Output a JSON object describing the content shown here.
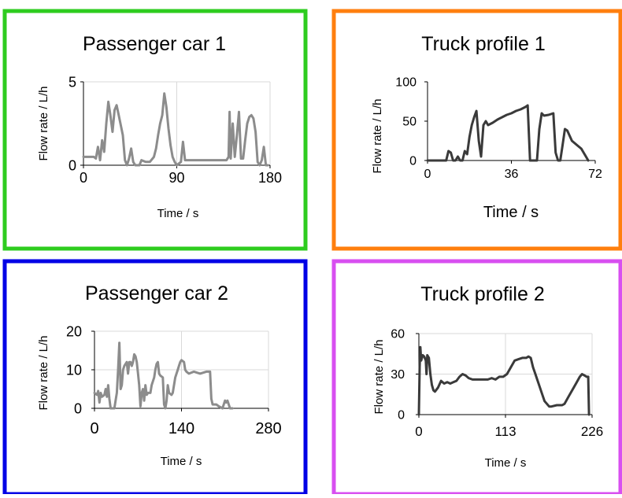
{
  "chart_data": [
    {
      "type": "line",
      "title": "Passenger car 1",
      "xlabel": "Time / s",
      "ylabel": "Flow rate / L/h",
      "xlim": [
        0,
        180
      ],
      "ylim": [
        0,
        5
      ],
      "xticks": [
        0,
        90,
        180
      ],
      "yticks": [
        0,
        5
      ],
      "grid": true,
      "frame_color": "#2ecc1f",
      "line_color": "#8c8c8c",
      "series": [
        {
          "points": [
            [
              0,
              0.5
            ],
            [
              10,
              0.5
            ],
            [
              12,
              0.4
            ],
            [
              14,
              1.1
            ],
            [
              16,
              0.3
            ],
            [
              18,
              1.5
            ],
            [
              20,
              0.8
            ],
            [
              22,
              2.5
            ],
            [
              24,
              3.8
            ],
            [
              26,
              3.0
            ],
            [
              28,
              2.0
            ],
            [
              30,
              3.3
            ],
            [
              32,
              3.6
            ],
            [
              34,
              3.0
            ],
            [
              36,
              2.4
            ],
            [
              38,
              1.8
            ],
            [
              40,
              0.3
            ],
            [
              42,
              0.0
            ],
            [
              44,
              0.4
            ],
            [
              46,
              1.0
            ],
            [
              48,
              0.2
            ],
            [
              50,
              0.0
            ],
            [
              54,
              0.0
            ],
            [
              56,
              0.3
            ],
            [
              60,
              0.2
            ],
            [
              64,
              0.2
            ],
            [
              68,
              0.5
            ],
            [
              70,
              1.0
            ],
            [
              72,
              1.8
            ],
            [
              74,
              2.5
            ],
            [
              76,
              3.0
            ],
            [
              78,
              4.3
            ],
            [
              80,
              3.5
            ],
            [
              82,
              2.2
            ],
            [
              84,
              1.2
            ],
            [
              86,
              0.5
            ],
            [
              88,
              0.2
            ],
            [
              90,
              0.0
            ],
            [
              92,
              0.1
            ],
            [
              94,
              0.2
            ],
            [
              96,
              1.4
            ],
            [
              98,
              0.3
            ],
            [
              102,
              0.3
            ],
            [
              120,
              0.3
            ],
            [
              138,
              0.3
            ],
            [
              140,
              0.5
            ],
            [
              141,
              3.2
            ],
            [
              142,
              0.4
            ],
            [
              144,
              2.5
            ],
            [
              146,
              0.5
            ],
            [
              148,
              1.8
            ],
            [
              150,
              3.2
            ],
            [
              152,
              0.4
            ],
            [
              154,
              0.4
            ],
            [
              156,
              1.5
            ],
            [
              158,
              2.5
            ],
            [
              160,
              2.9
            ],
            [
              162,
              3.0
            ],
            [
              164,
              2.8
            ],
            [
              166,
              2.0
            ],
            [
              168,
              0.2
            ],
            [
              170,
              0.0
            ],
            [
              172,
              0.3
            ],
            [
              174,
              1.1
            ],
            [
              176,
              0.0
            ],
            [
              178,
              0.0
            ]
          ]
        }
      ]
    },
    {
      "type": "line",
      "title": "Truck profile 1",
      "xlabel": "Time / s",
      "ylabel": "Flow rate / L/h",
      "xlim": [
        0,
        72
      ],
      "ylim": [
        0,
        100
      ],
      "xticks": [
        0,
        36,
        72
      ],
      "yticks": [
        0,
        50,
        100
      ],
      "grid": false,
      "frame_color": "#ff7f0e",
      "line_color": "#3a3a3a",
      "series": [
        {
          "points": [
            [
              0,
              0
            ],
            [
              8,
              0
            ],
            [
              9,
              12
            ],
            [
              10,
              10
            ],
            [
              11,
              0
            ],
            [
              12,
              0
            ],
            [
              13,
              5
            ],
            [
              14,
              0
            ],
            [
              15,
              0
            ],
            [
              16,
              12
            ],
            [
              17,
              8
            ],
            [
              18,
              30
            ],
            [
              19,
              45
            ],
            [
              20,
              55
            ],
            [
              21,
              63
            ],
            [
              22,
              25
            ],
            [
              23,
              5
            ],
            [
              24,
              45
            ],
            [
              25,
              50
            ],
            [
              26,
              45
            ],
            [
              28,
              48
            ],
            [
              30,
              52
            ],
            [
              32,
              55
            ],
            [
              34,
              58
            ],
            [
              36,
              60
            ],
            [
              38,
              63
            ],
            [
              40,
              65
            ],
            [
              42,
              68
            ],
            [
              43,
              70
            ],
            [
              44,
              0
            ],
            [
              46,
              0
            ],
            [
              47,
              0
            ],
            [
              48,
              40
            ],
            [
              49,
              60
            ],
            [
              50,
              57
            ],
            [
              52,
              58
            ],
            [
              54,
              60
            ],
            [
              55,
              10
            ],
            [
              56,
              0
            ],
            [
              57,
              0
            ],
            [
              58,
              20
            ],
            [
              59,
              40
            ],
            [
              60,
              38
            ],
            [
              62,
              25
            ],
            [
              64,
              20
            ],
            [
              66,
              15
            ],
            [
              68,
              5
            ],
            [
              69,
              0
            ]
          ]
        }
      ]
    },
    {
      "type": "line",
      "title": "Passenger car 2",
      "xlabel": "Time / s",
      "ylabel": "Flow rate / L/h",
      "xlim": [
        0,
        280
      ],
      "ylim": [
        0,
        20
      ],
      "xticks": [
        0,
        140,
        280
      ],
      "yticks": [
        0,
        10,
        20
      ],
      "grid": true,
      "frame_color": "#0000e6",
      "line_color": "#8c8c8c",
      "series": [
        {
          "points": [
            [
              0,
              4
            ],
            [
              4,
              3.5
            ],
            [
              6,
              4.5
            ],
            [
              8,
              1.5
            ],
            [
              10,
              4
            ],
            [
              12,
              3
            ],
            [
              16,
              3.5
            ],
            [
              18,
              5
            ],
            [
              20,
              3
            ],
            [
              22,
              6
            ],
            [
              24,
              2.5
            ],
            [
              26,
              0
            ],
            [
              28,
              0
            ],
            [
              32,
              0
            ],
            [
              34,
              2
            ],
            [
              36,
              4
            ],
            [
              38,
              10
            ],
            [
              40,
              17
            ],
            [
              42,
              5
            ],
            [
              44,
              6
            ],
            [
              46,
              10
            ],
            [
              48,
              11
            ],
            [
              50,
              11.5
            ],
            [
              52,
              12
            ],
            [
              54,
              9
            ],
            [
              56,
              12
            ],
            [
              58,
              12
            ],
            [
              60,
              11
            ],
            [
              62,
              12
            ],
            [
              64,
              14
            ],
            [
              66,
              13.5
            ],
            [
              68,
              12
            ],
            [
              70,
              9
            ],
            [
              72,
              6
            ],
            [
              74,
              0.5
            ],
            [
              76,
              4
            ],
            [
              78,
              5
            ],
            [
              80,
              2
            ],
            [
              82,
              6
            ],
            [
              84,
              3.5
            ],
            [
              86,
              4
            ],
            [
              90,
              4
            ],
            [
              92,
              6
            ],
            [
              94,
              7
            ],
            [
              96,
              8
            ],
            [
              98,
              10
            ],
            [
              100,
              11.5
            ],
            [
              102,
              12
            ],
            [
              104,
              9
            ],
            [
              106,
              8.5
            ],
            [
              110,
              8
            ],
            [
              112,
              1
            ],
            [
              114,
              0
            ],
            [
              116,
              2
            ],
            [
              118,
              6
            ],
            [
              120,
              4
            ],
            [
              124,
              3.5
            ],
            [
              126,
              4
            ],
            [
              128,
              6
            ],
            [
              130,
              8
            ],
            [
              132,
              9
            ],
            [
              134,
              10
            ],
            [
              136,
              11
            ],
            [
              138,
              12
            ],
            [
              140,
              12.5
            ],
            [
              144,
              12
            ],
            [
              146,
              10
            ],
            [
              148,
              9.5
            ],
            [
              152,
              9
            ],
            [
              160,
              9.5
            ],
            [
              170,
              9
            ],
            [
              180,
              9.5
            ],
            [
              186,
              9.5
            ],
            [
              188,
              2.5
            ],
            [
              190,
              1
            ],
            [
              196,
              1
            ],
            [
              200,
              0.5
            ],
            [
              206,
              0
            ],
            [
              210,
              2
            ],
            [
              212,
              1.5
            ],
            [
              214,
              2
            ],
            [
              216,
              1
            ],
            [
              218,
              0
            ],
            [
              222,
              0
            ]
          ]
        }
      ]
    },
    {
      "type": "line",
      "title": "Truck profile 2",
      "xlabel": "Time / s",
      "ylabel": "Flow rate / L/h",
      "xlim": [
        0,
        226
      ],
      "ylim": [
        0,
        60
      ],
      "xticks": [
        0,
        113,
        226
      ],
      "yticks": [
        0,
        30,
        60
      ],
      "grid": true,
      "frame_color": "#d84ff0",
      "line_color": "#3a3a3a",
      "series": [
        {
          "points": [
            [
              0,
              0
            ],
            [
              1,
              35
            ],
            [
              2,
              50
            ],
            [
              3,
              40
            ],
            [
              5,
              44
            ],
            [
              7,
              43
            ],
            [
              9,
              40
            ],
            [
              10,
              30
            ],
            [
              11,
              44
            ],
            [
              13,
              42
            ],
            [
              15,
              30
            ],
            [
              17,
              22
            ],
            [
              19,
              18
            ],
            [
              21,
              17
            ],
            [
              25,
              20
            ],
            [
              29,
              25
            ],
            [
              33,
              23
            ],
            [
              37,
              24
            ],
            [
              41,
              23
            ],
            [
              45,
              24
            ],
            [
              49,
              25
            ],
            [
              53,
              28
            ],
            [
              57,
              30
            ],
            [
              61,
              29
            ],
            [
              65,
              27
            ],
            [
              70,
              26
            ],
            [
              80,
              26
            ],
            [
              90,
              26
            ],
            [
              95,
              27
            ],
            [
              100,
              26
            ],
            [
              105,
              28
            ],
            [
              110,
              28
            ],
            [
              115,
              30
            ],
            [
              120,
              35
            ],
            [
              125,
              40
            ],
            [
              130,
              41
            ],
            [
              135,
              42
            ],
            [
              140,
              42
            ],
            [
              143,
              43
            ],
            [
              146,
              42
            ],
            [
              149,
              35
            ],
            [
              152,
              30
            ],
            [
              155,
              25
            ],
            [
              158,
              20
            ],
            [
              161,
              15
            ],
            [
              164,
              10
            ],
            [
              167,
              8
            ],
            [
              170,
              6
            ],
            [
              173,
              6
            ],
            [
              180,
              7
            ],
            [
              187,
              7
            ],
            [
              190,
              8
            ],
            [
              195,
              13
            ],
            [
              200,
              18
            ],
            [
              205,
              23
            ],
            [
              210,
              28
            ],
            [
              213,
              30
            ],
            [
              216,
              29
            ],
            [
              219,
              28
            ],
            [
              221,
              28
            ],
            [
              222,
              0
            ]
          ]
        }
      ]
    }
  ]
}
